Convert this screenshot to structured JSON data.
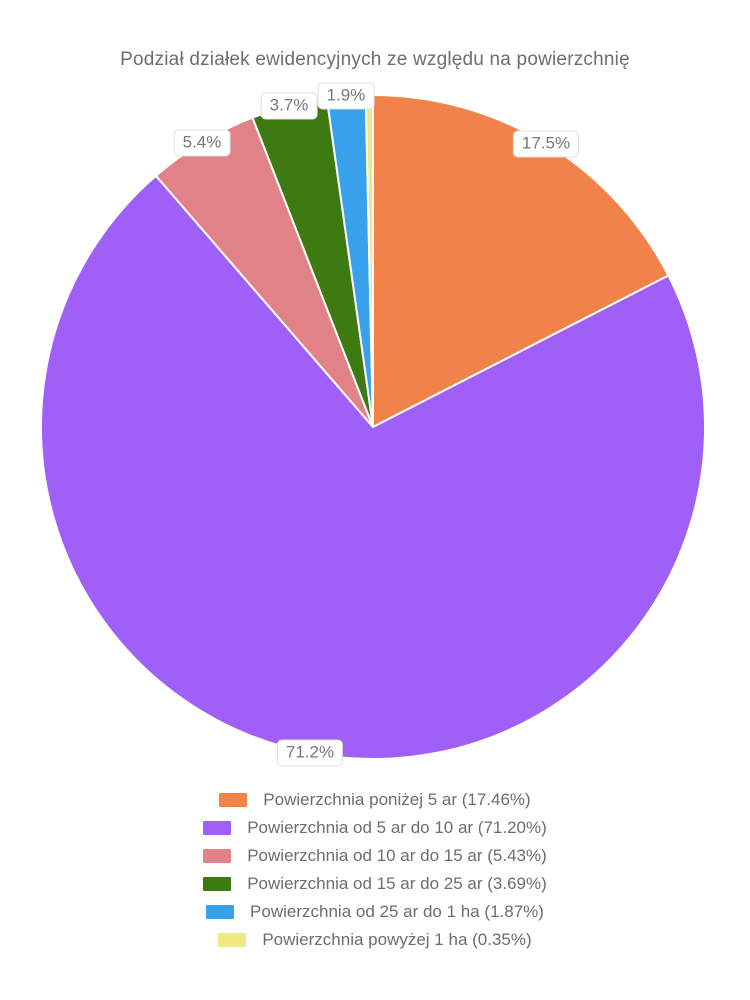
{
  "chart_data": {
    "type": "pie",
    "title": "Podział działek ewidencyjnych ze względu na powierzchnię",
    "direction": "clockwise",
    "start_angle_deg": 0,
    "legend_position": "bottom-center",
    "slice_labels_position": "outside-rim",
    "background_color": "#ffffff",
    "text_color": "#6d6d6d",
    "slice_border_color": "#ffffff",
    "slices": [
      {
        "label": "Powierzchnia poniżej 5 ar",
        "value_pct": 17.46,
        "display_pct": "17.5%",
        "legend_label": "Powierzchnia poniżej 5 ar (17.46%)",
        "color": "#F0824A"
      },
      {
        "label": "Powierzchnia od 5 ar do 10 ar",
        "value_pct": 71.2,
        "display_pct": "71.2%",
        "legend_label": "Powierzchnia od 5 ar do 10 ar (71.20%)",
        "color": "#A05FF6"
      },
      {
        "label": "Powierzchnia od 10 ar do 15 ar",
        "value_pct": 5.43,
        "display_pct": "5.4%",
        "legend_label": "Powierzchnia od 10 ar do 15 ar (5.43%)",
        "color": "#E08287"
      },
      {
        "label": "Powierzchnia od 15 ar do 25 ar",
        "value_pct": 3.69,
        "display_pct": "3.7%",
        "legend_label": "Powierzchnia od 15 ar do 25 ar (3.69%)",
        "color": "#3E7A12"
      },
      {
        "label": "Powierzchnia od 25 ar do 1 ha",
        "value_pct": 1.87,
        "display_pct": "1.9%",
        "legend_label": "Powierzchnia od 25 ar do 1 ha (1.87%)",
        "color": "#39A1EC"
      },
      {
        "label": "Powierzchnia powyżej 1 ha",
        "value_pct": 0.35,
        "display_pct": null,
        "legend_label": "Powierzchnia powyżej 1 ha (0.35%)",
        "color": "#EEE982"
      }
    ]
  }
}
